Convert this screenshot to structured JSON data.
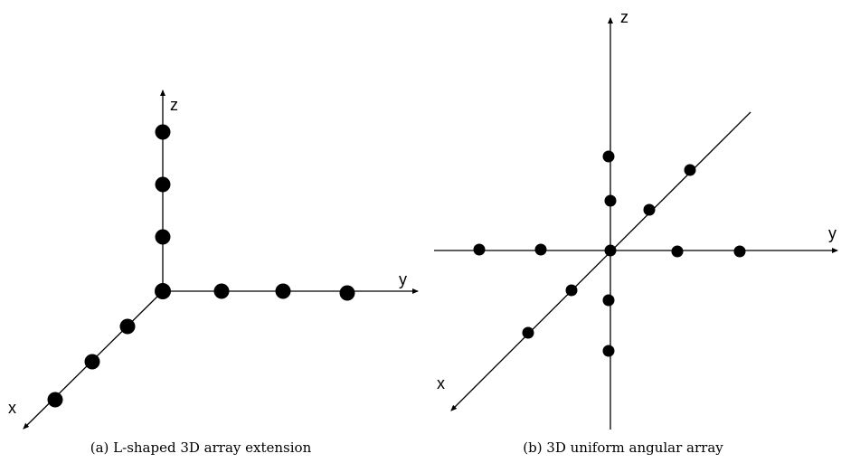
{
  "panel_a": {
    "caption": "(a) L-shaped 3D array extension",
    "axis_labels": {
      "x": "x",
      "y": "y",
      "z": "z"
    },
    "sensor_count": {
      "x_axis": 3,
      "y_axis": 3,
      "z_axis": 3,
      "origin": 1
    }
  },
  "panel_b": {
    "caption": "(b) 3D uniform angular array",
    "axis_labels": {
      "x": "x",
      "y": "y",
      "z": "z"
    },
    "sensor_count": {
      "x_axis_positive": 2,
      "x_axis_negative": 2,
      "y_axis_positive": 2,
      "y_axis_negative": 2,
      "z_axis_positive": 2,
      "z_axis_negative": 2,
      "origin": 1
    }
  }
}
